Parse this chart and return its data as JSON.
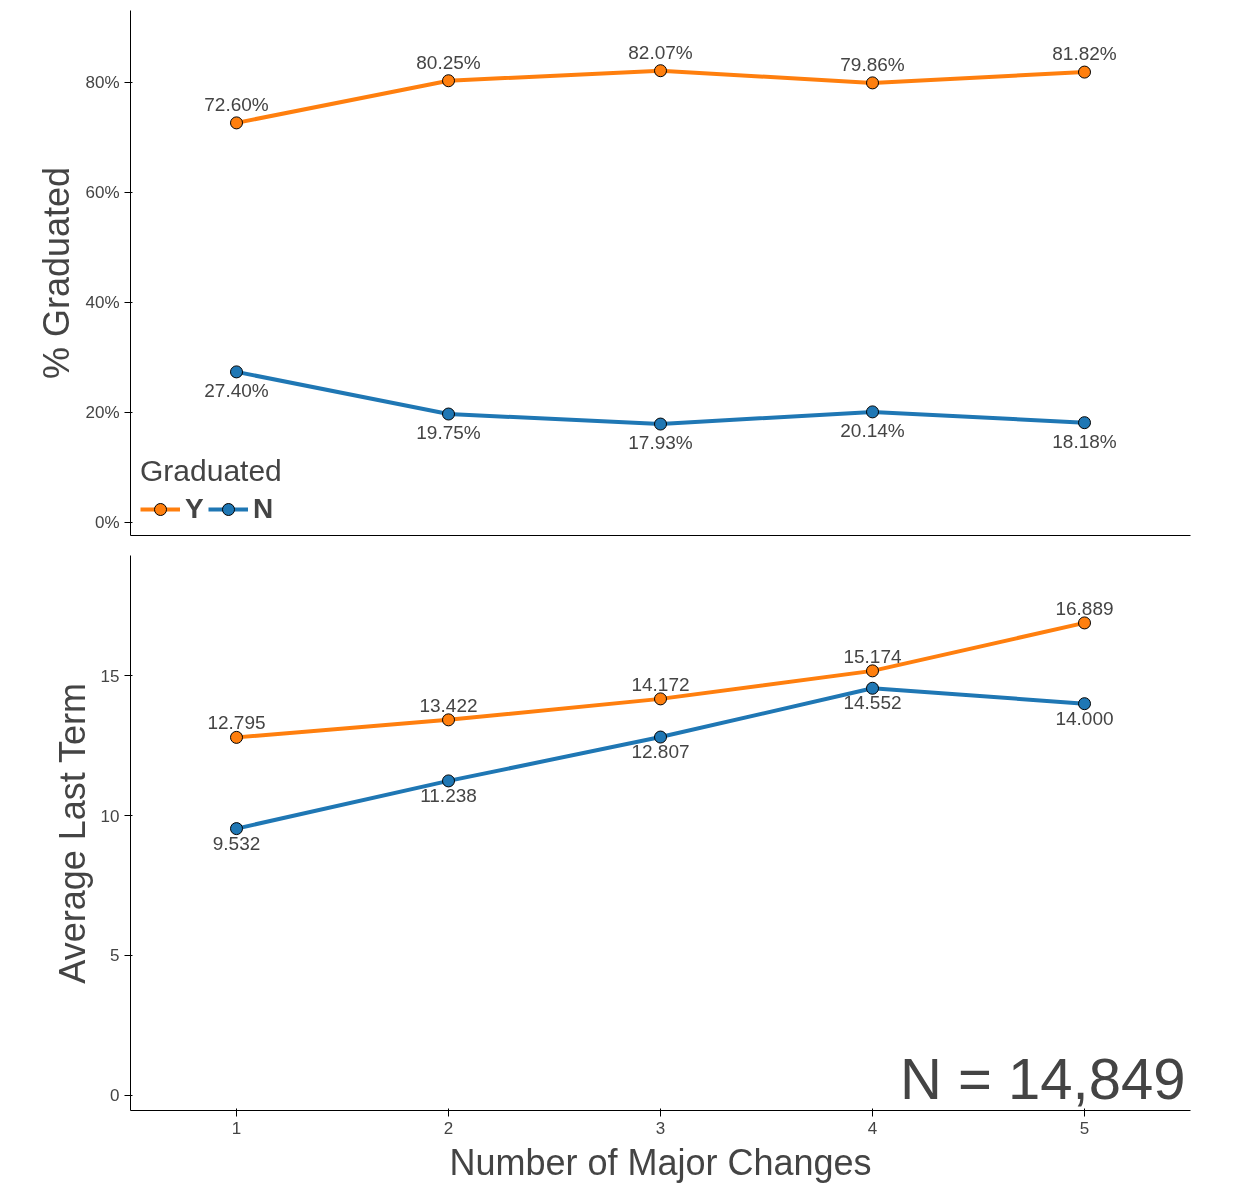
{
  "chart_data": [
    {
      "type": "line",
      "ylabel": "% Graduated",
      "categories": [
        "1",
        "2",
        "3",
        "4",
        "5"
      ],
      "legend_title": "Graduated",
      "legend": "bottom left",
      "marker": "circle",
      "tick_labels": "y",
      "grid": false,
      "ylim": [
        -2.3,
        93
      ],
      "yticks": [
        {
          "value": 0,
          "label": "0%"
        },
        {
          "value": 20,
          "label": "20%"
        },
        {
          "value": 40,
          "label": "40%"
        },
        {
          "value": 60,
          "label": "60%"
        },
        {
          "value": 80,
          "label": "80%"
        }
      ],
      "series": [
        {
          "name": "Y",
          "color": "#ff7f0e",
          "values": [
            72.6,
            80.25,
            82.07,
            79.86,
            81.82
          ],
          "value_labels": [
            "72.60%",
            "80.25%",
            "82.07%",
            "79.86%",
            "81.82%"
          ]
        },
        {
          "name": "N",
          "color": "#1f77b4",
          "values": [
            27.4,
            19.75,
            17.93,
            20.14,
            18.18
          ],
          "value_labels": [
            "27.40%",
            "19.75%",
            "17.93%",
            "20.14%",
            "18.18%"
          ]
        }
      ]
    },
    {
      "type": "line",
      "ylabel": "Average Last Term",
      "xlabel": "Number of Major Changes",
      "categories": [
        "1",
        "2",
        "3",
        "4",
        "5"
      ],
      "marker": "circle",
      "grid": false,
      "ylim": [
        -0.55,
        19.3
      ],
      "yticks": [
        0,
        5,
        10,
        15
      ],
      "annotations": [
        "N = 14,849"
      ],
      "series": [
        {
          "color": "#ff7f0e",
          "values": [
            12.795,
            13.422,
            14.172,
            15.174,
            16.889
          ],
          "value_labels": [
            "12.795",
            "13.422",
            "14.172",
            "15.174",
            "16.889"
          ]
        },
        {
          "color": "#1f77b4",
          "values": [
            9.532,
            11.238,
            12.807,
            14.552,
            14.0
          ],
          "value_labels": [
            "9.532",
            "11.238",
            "12.807",
            "14.552",
            "14.000"
          ]
        }
      ]
    }
  ]
}
